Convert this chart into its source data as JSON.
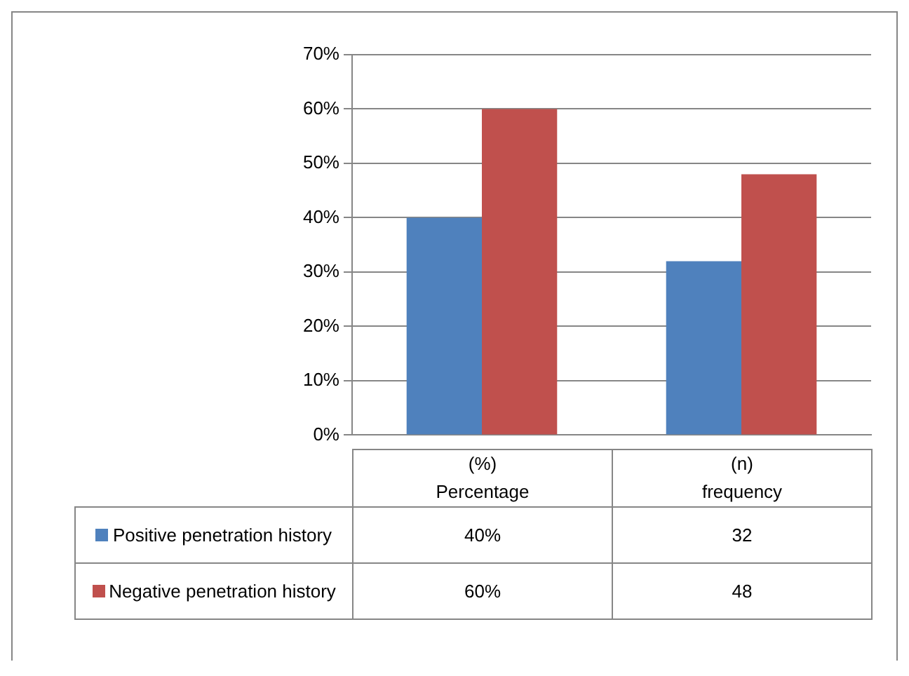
{
  "chart_data": {
    "type": "bar",
    "categories": [
      "(%)\nPercentage",
      "(n)\nfrequency"
    ],
    "series": [
      {
        "name": "Positive penetration history",
        "color": "#4f81bd",
        "values": [
          40,
          32
        ],
        "value_labels": [
          "40%",
          "32"
        ]
      },
      {
        "name": "Negative penetration history",
        "color": "#c0504d",
        "values": [
          60,
          48
        ],
        "value_labels": [
          "60%",
          "48"
        ]
      }
    ],
    "ylim": [
      0,
      70
    ],
    "yticks": [
      {
        "value": 0,
        "label": "0%"
      },
      {
        "value": 10,
        "label": "10%"
      },
      {
        "value": 20,
        "label": "20%"
      },
      {
        "value": 30,
        "label": "30%"
      },
      {
        "value": 40,
        "label": "40%"
      },
      {
        "value": 50,
        "label": "50%"
      },
      {
        "value": 60,
        "label": "60%"
      },
      {
        "value": 70,
        "label": "70%"
      }
    ],
    "grid": "y",
    "legend": "bottom"
  }
}
